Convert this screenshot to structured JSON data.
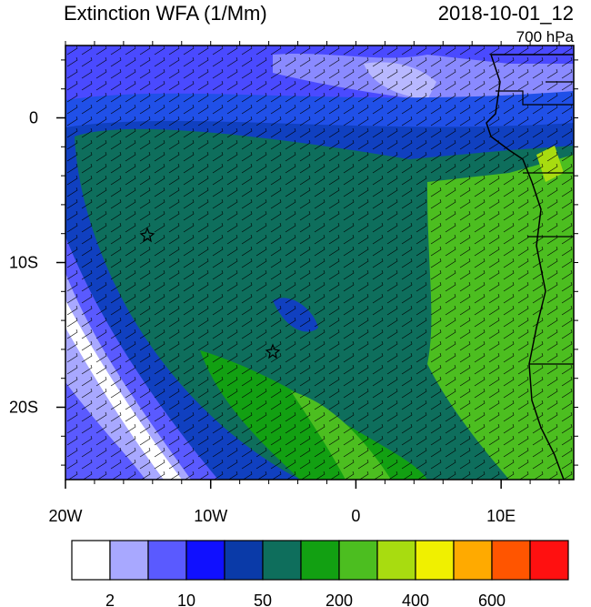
{
  "map": {
    "title": "Extinction WFA (1/Mm)",
    "time": "2018-10-01_12",
    "level": "700 hPa",
    "xlim": [
      -20,
      15
    ],
    "ylim": [
      -25,
      5
    ],
    "xticks": [
      {
        "value": -20,
        "label": "20W"
      },
      {
        "value": -10,
        "label": "10W"
      },
      0,
      {
        "value": 10,
        "label": "10E"
      }
    ],
    "yticks": [
      0,
      {
        "value": -10,
        "label": "10S"
      },
      {
        "value": -20,
        "label": "20S"
      }
    ],
    "colorbar": {
      "colors": [
        "#ffffff",
        "#a8a8ff",
        "#5a5aff",
        "#1010ff",
        "#0a3aa8",
        "#0e6e5c",
        "#12a012",
        "#4cbe20",
        "#a8dc10",
        "#f0f000",
        "#ffaa00",
        "#ff5500",
        "#ff1010"
      ],
      "labels": [
        "2",
        "10",
        "50",
        "200",
        "400",
        "600"
      ]
    }
  }
}
